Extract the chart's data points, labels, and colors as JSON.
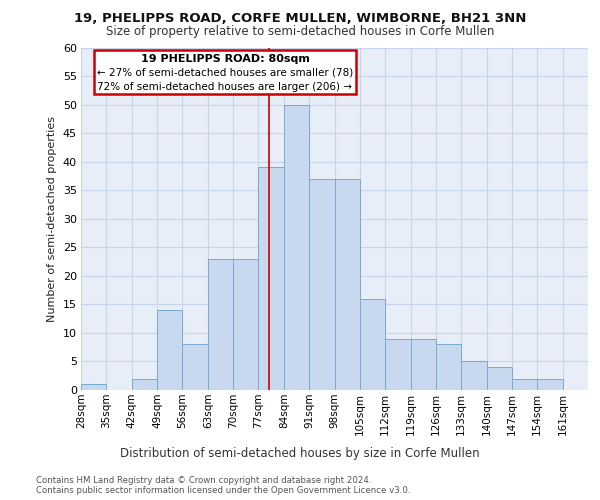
{
  "title1": "19, PHELIPPS ROAD, CORFE MULLEN, WIMBORNE, BH21 3NN",
  "title2": "Size of property relative to semi-detached houses in Corfe Mullen",
  "xlabel": "Distribution of semi-detached houses by size in Corfe Mullen",
  "ylabel": "Number of semi-detached properties",
  "footer1": "Contains HM Land Registry data © Crown copyright and database right 2024.",
  "footer2": "Contains public sector information licensed under the Open Government Licence v3.0.",
  "bar_color": "#c8d8ef",
  "bar_edge_color": "#7aaad0",
  "bins": [
    28,
    35,
    42,
    49,
    56,
    63,
    70,
    77,
    84,
    91,
    98,
    105,
    112,
    119,
    126,
    133,
    140,
    147,
    154,
    161,
    168
  ],
  "counts": [
    1,
    0,
    2,
    14,
    8,
    23,
    23,
    39,
    50,
    37,
    37,
    16,
    9,
    9,
    8,
    5,
    4,
    2,
    2,
    0
  ],
  "property_size": 80,
  "annotation_title": "19 PHELIPPS ROAD: 80sqm",
  "annotation_line2": "← 27% of semi-detached houses are smaller (78)",
  "annotation_line3": "72% of semi-detached houses are larger (206) →",
  "annotation_box_color": "#ffffff",
  "annotation_border_color": "#cc0000",
  "vline_color": "#cc0000",
  "ylim": [
    0,
    60
  ],
  "yticks": [
    0,
    5,
    10,
    15,
    20,
    25,
    30,
    35,
    40,
    45,
    50,
    55,
    60
  ],
  "grid_color": "#c8d4e8",
  "background_color": "#e8eef8"
}
